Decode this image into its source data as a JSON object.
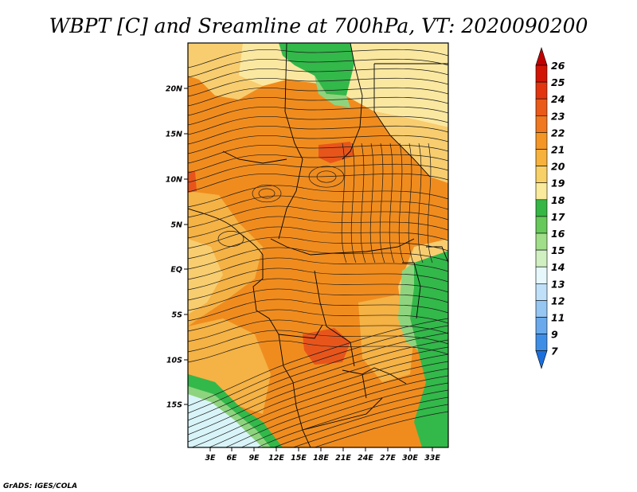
{
  "title": "WBPT [C] and Sreamline at 700hPa, VT: 2020090200",
  "credit": "GrADS: IGES/COLA",
  "map": {
    "lat_labels": [
      "20N",
      "15N",
      "10N",
      "5N",
      "EQ",
      "5S",
      "10S",
      "15S"
    ],
    "lon_labels": [
      "3E",
      "6E",
      "9E",
      "12E",
      "15E",
      "18E",
      "21E",
      "24E",
      "27E",
      "30E",
      "33E"
    ],
    "colors": {
      "orange": "#f08c1e",
      "light_orange": "#f5b245",
      "pale_orange": "#f8cd6f",
      "cream": "#fbe8a0",
      "green": "#33b84a",
      "light_green": "#8ed47e",
      "pale_blue": "#d8f4f8",
      "red_orange": "#e8551b"
    }
  },
  "colorbar": {
    "labels": [
      "26",
      "25",
      "24",
      "23",
      "22",
      "21",
      "20",
      "19",
      "18",
      "17",
      "16",
      "15",
      "14",
      "13",
      "12",
      "11",
      "9",
      "7"
    ],
    "colors": [
      "#c00000",
      "#d21406",
      "#e2350f",
      "#ea5a18",
      "#f07820",
      "#f49626",
      "#f6b23c",
      "#f8d068",
      "#f9ea9c",
      "#36b644",
      "#66c95a",
      "#a0de8a",
      "#d0f0c2",
      "#e6f8fb",
      "#bfe0f8",
      "#96c6f2",
      "#6aa9eb",
      "#3f8ee6",
      "#1b6fdc"
    ]
  }
}
